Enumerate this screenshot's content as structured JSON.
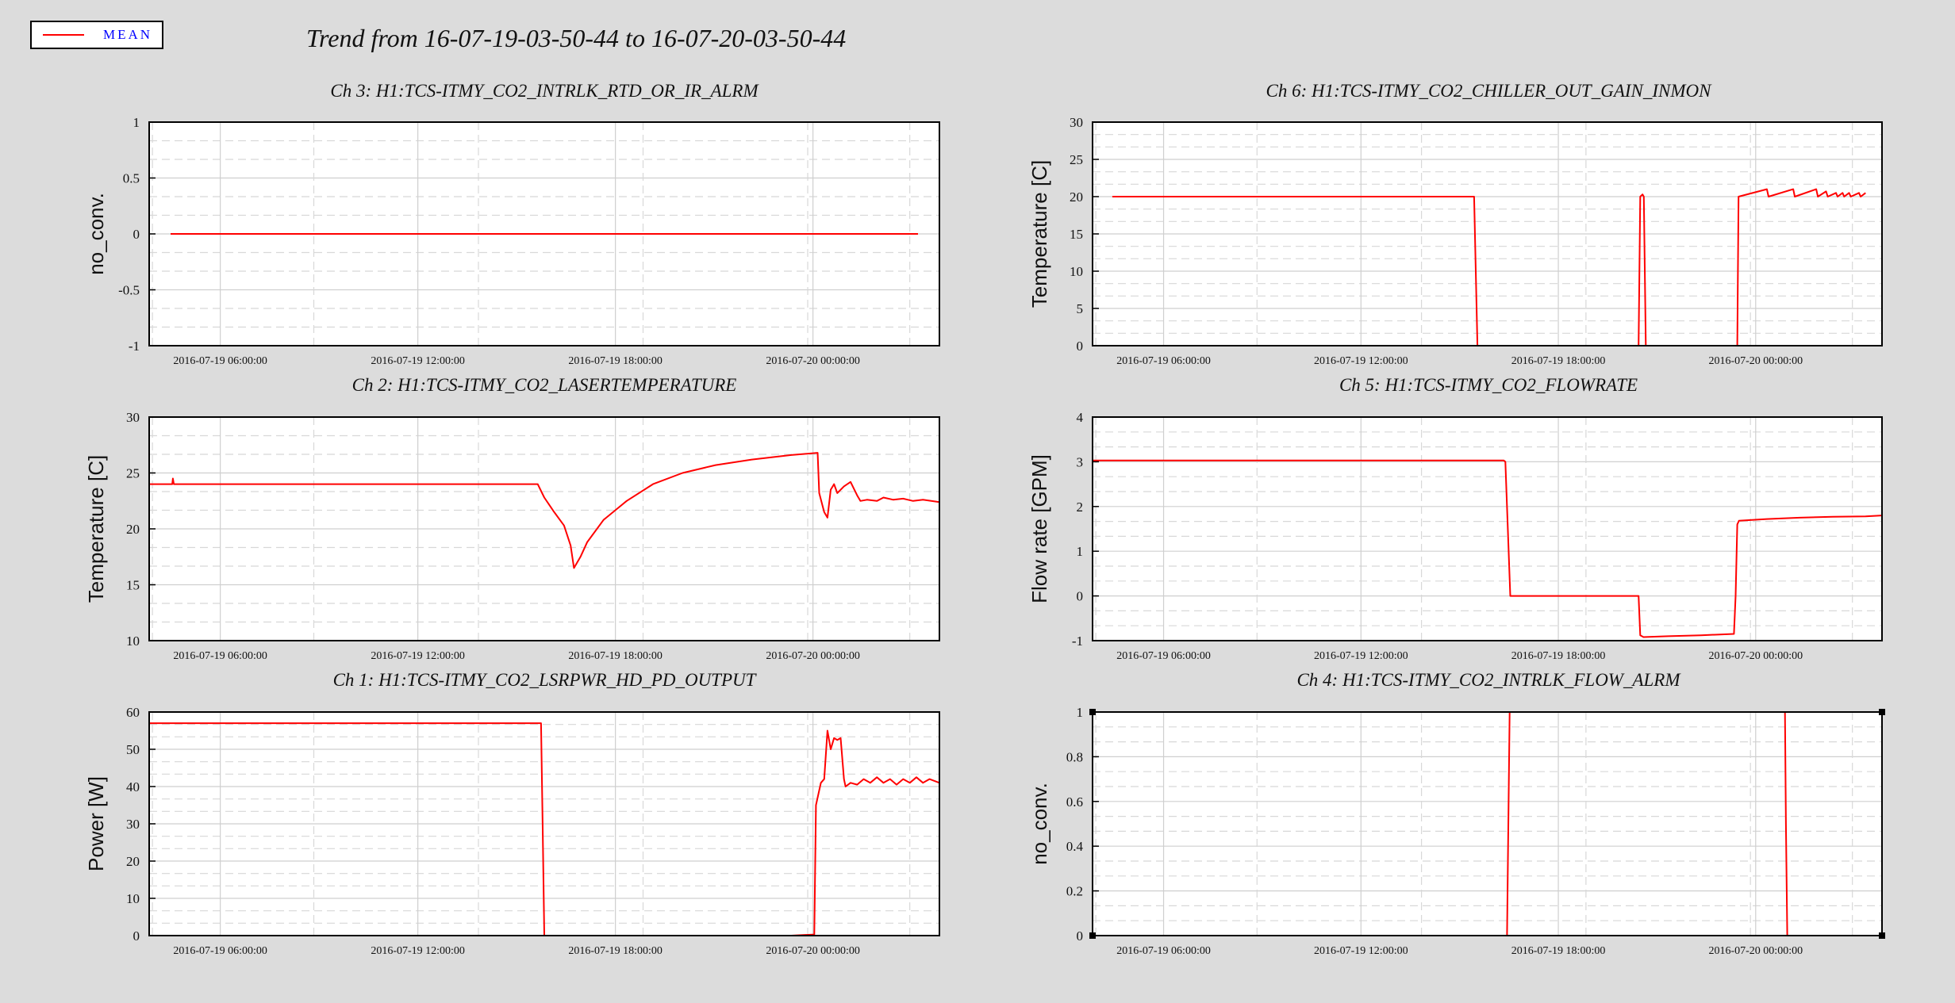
{
  "title": "Trend from 16-07-19-03-50-44 to 16-07-20-03-50-44",
  "legend": {
    "label": "MEAN",
    "color": "#ff0000"
  },
  "colors": {
    "background": "#dcdcdc",
    "plot_bg": "#ffffff",
    "series": "#ff0000",
    "legend_text": "#0000ff"
  },
  "chart_data": [
    {
      "id": "ch3",
      "type": "line",
      "title": "Ch 3: H1:TCS-ITMY_CO2_INTRLK_RTD_OR_IR_ALRM",
      "xlabel": "",
      "ylabel": "no_conv.",
      "xlim": [
        0,
        24
      ],
      "ylim": [
        -1,
        1
      ],
      "yticks": [
        "-1",
        "-0.5",
        "0",
        "0.5",
        "1"
      ],
      "ytick_values": [
        -1,
        -0.5,
        0,
        0.5,
        1
      ],
      "xticks": [
        "2016-07-19 06:00:00",
        "2016-07-19 12:00:00",
        "2016-07-19 18:00:00",
        "2016-07-20 00:00:00"
      ],
      "xtick_values": [
        2.16,
        8.16,
        14.16,
        20.16
      ],
      "grid": true,
      "series": [
        {
          "name": "MEAN",
          "x": [
            0.65,
            23.35
          ],
          "y": [
            0,
            0
          ]
        }
      ]
    },
    {
      "id": "ch6",
      "type": "line",
      "title": "Ch 6: H1:TCS-ITMY_CO2_CHILLER_OUT_GAIN_INMON",
      "xlabel": "",
      "ylabel": "Temperature [C]",
      "xlim": [
        0,
        24
      ],
      "ylim": [
        0,
        30
      ],
      "yticks": [
        "0",
        "5",
        "10",
        "15",
        "20",
        "25",
        "30"
      ],
      "ytick_values": [
        0,
        5,
        10,
        15,
        20,
        25,
        30
      ],
      "xticks": [
        "2016-07-19 06:00:00",
        "2016-07-19 12:00:00",
        "2016-07-19 18:00:00",
        "2016-07-20 00:00:00"
      ],
      "xtick_values": [
        2.16,
        8.16,
        14.16,
        20.16
      ],
      "grid": true,
      "series": [
        {
          "name": "MEAN",
          "x": [
            0.6,
            11.6,
            11.65,
            11.7,
            16.6,
            16.65,
            16.72,
            16.76,
            16.82,
            16.88,
            19.6,
            19.64,
            20.5,
            20.55,
            21.3,
            21.35,
            22.0,
            22.05,
            22.3,
            22.35,
            22.6,
            22.65,
            22.8,
            22.85,
            23.0,
            23.05,
            23.3,
            23.35,
            23.5
          ],
          "y": [
            20,
            20,
            10,
            0,
            0,
            20,
            20.3,
            20,
            0,
            0,
            0,
            20,
            21,
            20,
            21,
            20,
            21,
            20,
            20.7,
            20,
            20.5,
            20,
            20.5,
            20,
            20.5,
            20,
            20.5,
            20,
            20.5
          ]
        }
      ]
    },
    {
      "id": "ch2",
      "type": "line",
      "title": "Ch 2: H1:TCS-ITMY_CO2_LASERTEMPERATURE",
      "xlabel": "",
      "ylabel": "Temperature [C]",
      "xlim": [
        0,
        24
      ],
      "ylim": [
        10,
        30
      ],
      "yticks": [
        "10",
        "15",
        "20",
        "25",
        "30"
      ],
      "ytick_values": [
        10,
        15,
        20,
        25,
        30
      ],
      "xticks": [
        "2016-07-19 06:00:00",
        "2016-07-19 12:00:00",
        "2016-07-19 18:00:00",
        "2016-07-20 00:00:00"
      ],
      "xtick_values": [
        2.16,
        8.16,
        14.16,
        20.16
      ],
      "grid": true,
      "series": [
        {
          "name": "MEAN",
          "x": [
            0.0,
            0.7,
            0.72,
            0.75,
            11.8,
            12.0,
            12.3,
            12.6,
            12.8,
            12.9,
            13.1,
            13.3,
            13.8,
            14.5,
            15.3,
            16.2,
            17.2,
            18.3,
            19.5,
            20.3,
            20.35,
            20.5,
            20.6,
            20.7,
            20.8,
            20.9,
            21.1,
            21.3,
            21.5,
            21.6,
            21.8,
            22.1,
            22.3,
            22.6,
            22.9,
            23.2,
            23.5,
            24.0
          ],
          "y": [
            24,
            24,
            24.5,
            24,
            24,
            22.8,
            21.5,
            20.3,
            18.5,
            16.5,
            17.5,
            18.8,
            20.8,
            22.5,
            24,
            25,
            25.7,
            26.2,
            26.6,
            26.8,
            23.2,
            21.5,
            21,
            23.5,
            24,
            23.2,
            23.8,
            24.2,
            23,
            22.5,
            22.6,
            22.5,
            22.8,
            22.6,
            22.7,
            22.5,
            22.6,
            22.4
          ]
        }
      ]
    },
    {
      "id": "ch5",
      "type": "line",
      "title": "Ch 5: H1:TCS-ITMY_CO2_FLOWRATE",
      "xlabel": "",
      "ylabel": "Flow rate [GPM]",
      "xlim": [
        0,
        24
      ],
      "ylim": [
        -1,
        4
      ],
      "yticks": [
        "-1",
        "0",
        "1",
        "2",
        "3",
        "4"
      ],
      "ytick_values": [
        -1,
        0,
        1,
        2,
        3,
        4
      ],
      "xticks": [
        "2016-07-19 06:00:00",
        "2016-07-19 12:00:00",
        "2016-07-19 18:00:00",
        "2016-07-20 00:00:00"
      ],
      "xtick_values": [
        2.16,
        8.16,
        14.16,
        20.16
      ],
      "grid": true,
      "series": [
        {
          "name": "MEAN",
          "x": [
            0.0,
            12.5,
            12.55,
            12.7,
            16.6,
            16.65,
            16.75,
            17.5,
            18.5,
            19.5,
            19.55,
            19.6,
            19.65,
            20.5,
            21.5,
            22.5,
            23.5,
            24.0
          ],
          "y": [
            3.03,
            3.03,
            3.0,
            0,
            0,
            -0.88,
            -0.92,
            -0.9,
            -0.88,
            -0.85,
            0,
            1.6,
            1.68,
            1.72,
            1.75,
            1.77,
            1.78,
            1.8
          ]
        }
      ]
    },
    {
      "id": "ch1",
      "type": "line",
      "title": "Ch 1: H1:TCS-ITMY_CO2_LSRPWR_HD_PD_OUTPUT",
      "xlabel": "",
      "ylabel": "Power [W]",
      "xlim": [
        0,
        24
      ],
      "ylim": [
        0,
        60
      ],
      "yticks": [
        "0",
        "10",
        "20",
        "30",
        "40",
        "50",
        "60"
      ],
      "ytick_values": [
        0,
        10,
        20,
        30,
        40,
        50,
        60
      ],
      "xticks": [
        "2016-07-19 06:00:00",
        "2016-07-19 12:00:00",
        "2016-07-19 18:00:00",
        "2016-07-20 00:00:00"
      ],
      "xtick_values": [
        2.16,
        8.16,
        14.16,
        20.16
      ],
      "grid": true,
      "series": [
        {
          "name": "MEAN",
          "x": [
            0.0,
            11.9,
            11.95,
            12.0,
            19.5,
            20.2,
            20.25,
            20.4,
            20.5,
            20.6,
            20.7,
            20.8,
            20.9,
            21.0,
            21.1,
            21.15,
            21.3,
            21.5,
            21.7,
            21.9,
            22.1,
            22.3,
            22.5,
            22.7,
            22.9,
            23.1,
            23.3,
            23.5,
            23.7,
            24.0
          ],
          "y": [
            57,
            57,
            30,
            0,
            0,
            0.3,
            35,
            41,
            42,
            55,
            50,
            53,
            52.5,
            53,
            42,
            40,
            41,
            40.5,
            42,
            41,
            42.5,
            41,
            42,
            40.5,
            42,
            41,
            42.5,
            41,
            42,
            41
          ]
        }
      ]
    },
    {
      "id": "ch4",
      "type": "line",
      "title": "Ch 4: H1:TCS-ITMY_CO2_INTRLK_FLOW_ALRM",
      "xlabel": "",
      "ylabel": "no_conv.",
      "xlim": [
        0,
        24
      ],
      "ylim": [
        0,
        1
      ],
      "yticks": [
        "0",
        "0.2",
        "0.4",
        "0.6",
        "0.8",
        "1"
      ],
      "ytick_values": [
        0,
        0.2,
        0.4,
        0.6,
        0.8,
        1
      ],
      "xticks": [
        "2016-07-19 06:00:00",
        "2016-07-19 12:00:00",
        "2016-07-19 18:00:00",
        "2016-07-20 00:00:00"
      ],
      "xtick_values": [
        2.16,
        8.16,
        14.16,
        20.16
      ],
      "grid": true,
      "series": [
        {
          "name": "MEAN",
          "x": [
            12.6,
            12.68,
            12.72,
            21.05,
            21.08,
            21.12
          ],
          "y": [
            0,
            1,
            1,
            1,
            0.5,
            0
          ]
        }
      ]
    }
  ]
}
